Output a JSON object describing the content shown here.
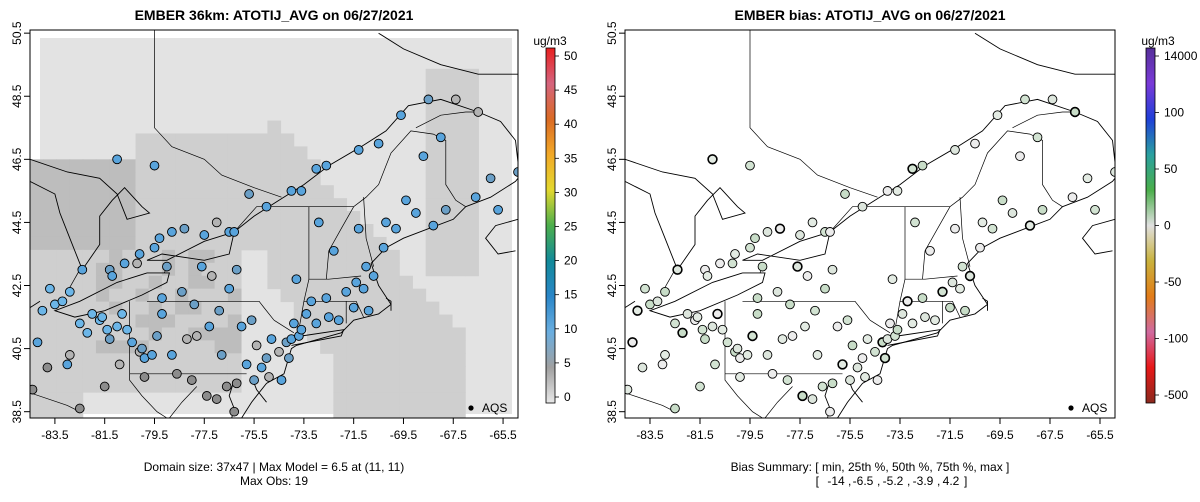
{
  "chart_data": [
    {
      "type": "map",
      "title": "EMBER 36km: ATOTIJ_AVG on 06/27/2021",
      "xlim": [
        -84.5,
        -64.9
      ],
      "ylim": [
        38.3,
        50.6
      ],
      "x_ticks": [
        "-83.5",
        "-81.5",
        "-79.5",
        "-77.5",
        "-75.5",
        "-73.5",
        "-71.5",
        "-69.5",
        "-67.5",
        "-65.5"
      ],
      "y_ticks": [
        "38.5",
        "40.5",
        "42.5",
        "44.5",
        "46.5",
        "48.5",
        "50.5"
      ],
      "colorbar_unit": "ug/m3",
      "colorbar_ticks": [
        "0",
        "5",
        "10",
        "15",
        "20",
        "25",
        "30",
        "35",
        "40",
        "45",
        "50"
      ],
      "colorbar_colors": [
        "#e8e8e8",
        "#a0a0a0",
        "#6aaee0",
        "#2a86c8",
        "#128a9a",
        "#4cae4c",
        "#e3d82f",
        "#f2a928",
        "#da6a24",
        "#d5647e",
        "#e82020"
      ],
      "legend_label": "AQS",
      "caption_lines": [
        "Domain size: 37x47 | Max Model = 6.5 at (11, 11)",
        "Max Obs: 19"
      ],
      "grid_values": [
        0,
        2.5,
        5
      ],
      "station_colors": [
        "#b3b3b3",
        "#8c8c8c",
        "#6b9fc6",
        "#59a4dc",
        "#6cb6e8"
      ]
    },
    {
      "type": "map",
      "title": "EMBER bias: ATOTIJ_AVG on 06/27/2021",
      "xlim": [
        -84.5,
        -64.9
      ],
      "ylim": [
        38.3,
        50.6
      ],
      "x_ticks": [
        "-83.5",
        "-81.5",
        "-79.5",
        "-77.5",
        "-75.5",
        "-73.5",
        "-71.5",
        "-69.5",
        "-67.5",
        "-65.5"
      ],
      "y_ticks": [
        "38.5",
        "40.5",
        "42.5",
        "44.5",
        "46.5",
        "48.5",
        "50.5"
      ],
      "colorbar_unit": "ug/m3",
      "colorbar_ticks": [
        "14000",
        "100",
        "50",
        "0",
        "-50",
        "-100",
        "-500"
      ],
      "colorbar_colors": [
        "#8a2a1e",
        "#e81818",
        "#d06aa0",
        "#e27c18",
        "#c9b23d",
        "#e0e0e0",
        "#4aae4a",
        "#2aa0a0",
        "#1f3fd8",
        "#7a3ad8",
        "#56309a"
      ],
      "legend_label": "AQS",
      "bias_summary": {
        "label": "Bias Summary: [ min, 25th %, 50th %, 75th %, max ]",
        "values": [
          "-14",
          "-6.5",
          "-5.2",
          "-3.9",
          "4.2"
        ]
      },
      "station_colors": [
        "#e3ebe3",
        "#d2e3d2",
        "#c8ddc8",
        "#dde6dd",
        "#ececec"
      ]
    }
  ]
}
